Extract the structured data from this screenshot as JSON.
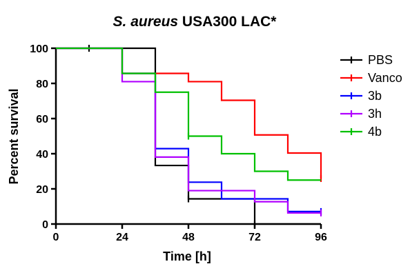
{
  "chart_data": {
    "type": "line",
    "subtype": "kaplan-meier",
    "title_italic": "S. aureus",
    "title_rest": " USA300 LAC*",
    "xlabel": "Time [h]",
    "ylabel": "Percent survival",
    "xlim": [
      0,
      96
    ],
    "ylim": [
      0,
      100
    ],
    "xticks": [
      0,
      24,
      48,
      72,
      96
    ],
    "yticks": [
      0,
      20,
      40,
      60,
      80,
      100
    ],
    "grid": false,
    "legend_position": "right",
    "series": [
      {
        "name": "PBS",
        "color": "#000000",
        "steps": [
          [
            0,
            100
          ],
          [
            36,
            33.3
          ],
          [
            48,
            14.3
          ],
          [
            72,
            0
          ],
          [
            96,
            0
          ]
        ],
        "censored": [
          [
            12,
            100
          ],
          [
            48,
            14.3
          ],
          [
            72,
            0
          ]
        ]
      },
      {
        "name": "Vanco",
        "color": "#ff0000",
        "steps": [
          [
            0,
            100
          ],
          [
            24,
            85.7
          ],
          [
            36,
            85.7
          ],
          [
            48,
            81
          ],
          [
            60,
            70.4
          ],
          [
            72,
            50.7
          ],
          [
            84,
            40.4
          ],
          [
            96,
            25.9
          ]
        ],
        "censored": [
          [
            96,
            25.9
          ]
        ]
      },
      {
        "name": "3b",
        "color": "#0000ff",
        "steps": [
          [
            0,
            100
          ],
          [
            24,
            85.7
          ],
          [
            36,
            42.9
          ],
          [
            48,
            23.8
          ],
          [
            60,
            14.3
          ],
          [
            84,
            7.1
          ],
          [
            96,
            7.1
          ]
        ],
        "censored": [
          [
            96,
            7.1
          ]
        ]
      },
      {
        "name": "3h",
        "color": "#b000ff",
        "steps": [
          [
            0,
            100
          ],
          [
            24,
            81
          ],
          [
            36,
            38.1
          ],
          [
            48,
            19
          ],
          [
            72,
            12.7
          ],
          [
            84,
            6.3
          ],
          [
            96,
            6.3
          ]
        ],
        "censored": [
          [
            96,
            6.3
          ]
        ]
      },
      {
        "name": "4b",
        "color": "#00c000",
        "steps": [
          [
            0,
            100
          ],
          [
            24,
            85.7
          ],
          [
            36,
            75
          ],
          [
            48,
            50
          ],
          [
            60,
            40
          ],
          [
            72,
            30
          ],
          [
            84,
            25
          ],
          [
            96,
            25
          ]
        ],
        "censored": [
          [
            48,
            50
          ]
        ]
      }
    ]
  }
}
